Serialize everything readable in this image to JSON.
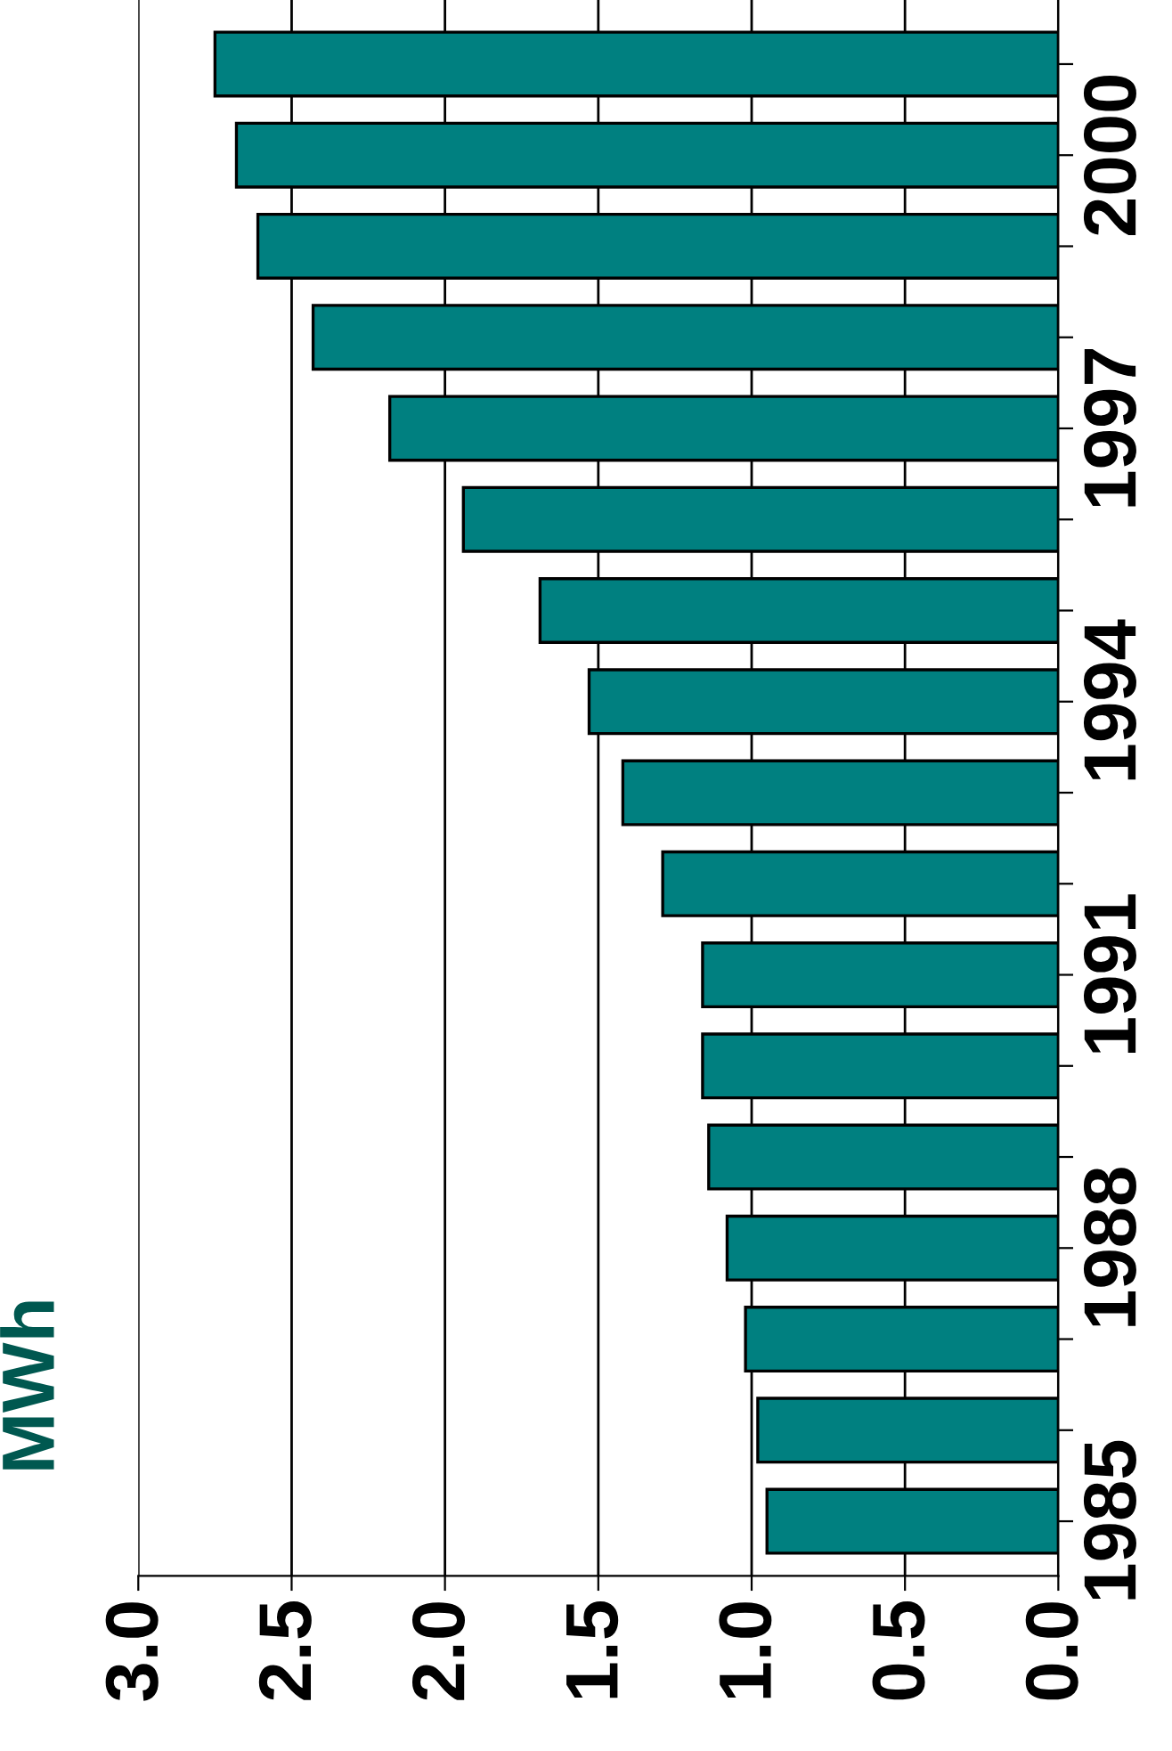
{
  "chart_data": {
    "type": "bar",
    "orientation": "horizontal",
    "ylabel": "MWh",
    "categories": [
      null,
      "2000",
      null,
      null,
      "1997",
      null,
      null,
      "1994",
      null,
      null,
      "1991",
      null,
      null,
      "1988",
      null,
      null,
      "1985"
    ],
    "values": [
      2.75,
      2.68,
      2.61,
      2.43,
      2.18,
      1.94,
      1.69,
      1.53,
      1.42,
      1.29,
      1.16,
      1.16,
      1.14,
      1.08,
      1.02,
      0.98,
      0.95
    ],
    "color": "#008080",
    "xlim": [
      3.0,
      0.0
    ],
    "xticks": [
      {
        "value": 3.0,
        "label": "3.0"
      },
      {
        "value": 2.5,
        "label": "2.5"
      },
      {
        "value": 2.0,
        "label": "2.0"
      },
      {
        "value": 1.5,
        "label": "1.5"
      },
      {
        "value": 1.0,
        "label": "1.0"
      },
      {
        "value": 0.5,
        "label": "0.5"
      },
      {
        "value": 0.0,
        "label": "0.0"
      }
    ],
    "grid": "x"
  }
}
